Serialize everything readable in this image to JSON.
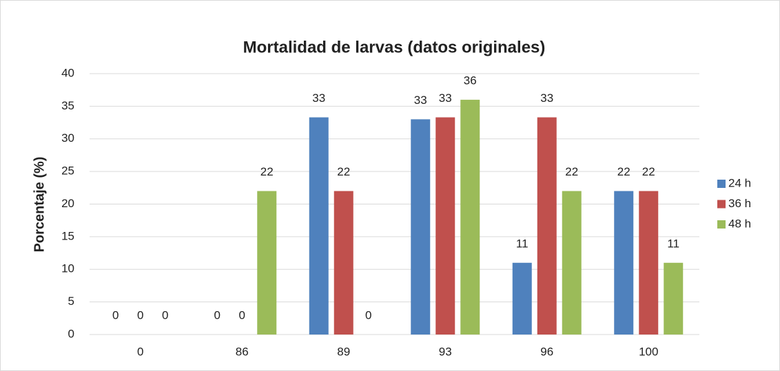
{
  "chart_data": {
    "type": "bar",
    "title": "Mortalidad de larvas (datos originales)",
    "y_label": "Porcentaje (%)",
    "categories": [
      "0",
      "86",
      "89",
      "93",
      "96",
      "100"
    ],
    "series": [
      {
        "name": "24 h",
        "color": "#4f81bd",
        "values": [
          0,
          0,
          33.3,
          33,
          11,
          22
        ],
        "value_labels": [
          "0",
          "0",
          "33",
          "33",
          "11",
          "22"
        ]
      },
      {
        "name": "36 h",
        "color": "#c0504d",
        "values": [
          0,
          0,
          22,
          33.3,
          33.3,
          22
        ],
        "value_labels": [
          "0",
          "0",
          "22",
          "33",
          "33",
          "22"
        ]
      },
      {
        "name": "48 h",
        "color": "#9bbb59",
        "values": [
          0,
          22,
          0,
          36,
          22,
          11
        ],
        "value_labels": [
          "0",
          "22",
          "0",
          "36",
          "22",
          "11"
        ]
      }
    ],
    "ylim": [
      0,
      40
    ],
    "yticks": [
      0,
      5,
      10,
      15,
      20,
      25,
      30,
      35,
      40
    ],
    "grid": true,
    "legend": "right"
  }
}
